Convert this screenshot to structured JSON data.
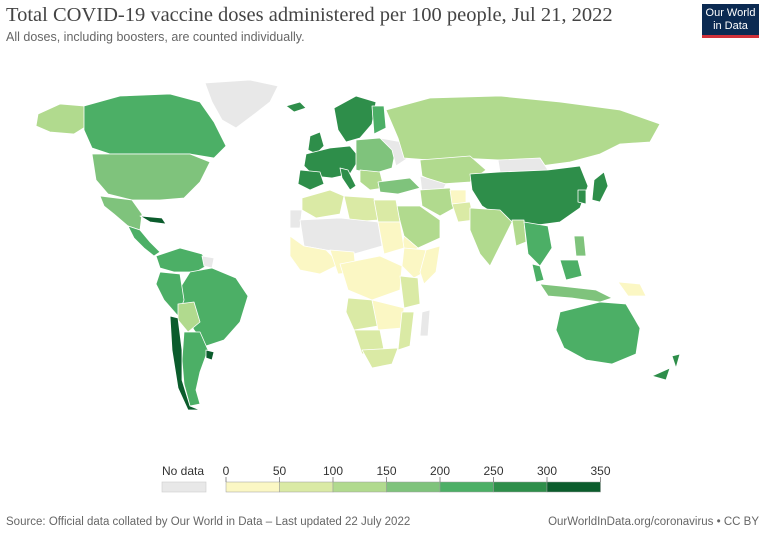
{
  "header": {
    "title": "Total COVID-19 vaccine doses administered per 100 people, Jul 21, 2022",
    "subtitle": "All doses, including boosters, are counted individually."
  },
  "logo": {
    "line1": "Our World",
    "line2": "in Data"
  },
  "legend": {
    "no_data_label": "No data",
    "ticks": [
      "0",
      "50",
      "100",
      "150",
      "200",
      "250",
      "300",
      "350"
    ],
    "colors": [
      "#fbf7c4",
      "#daeaa5",
      "#b1da8e",
      "#7fc37c",
      "#4caf66",
      "#2e8e4a",
      "#0b5c2c"
    ],
    "no_data_color": "#e8e8e8"
  },
  "colors": {
    "ocean": "#ffffff",
    "border": "#ffffff",
    "title": "#444444"
  },
  "footer": {
    "source": "Source: Official data collated by Our World in Data – Last updated 22 July 2022",
    "link": "OurWorldInData.org/coronavirus • CC BY"
  }
}
